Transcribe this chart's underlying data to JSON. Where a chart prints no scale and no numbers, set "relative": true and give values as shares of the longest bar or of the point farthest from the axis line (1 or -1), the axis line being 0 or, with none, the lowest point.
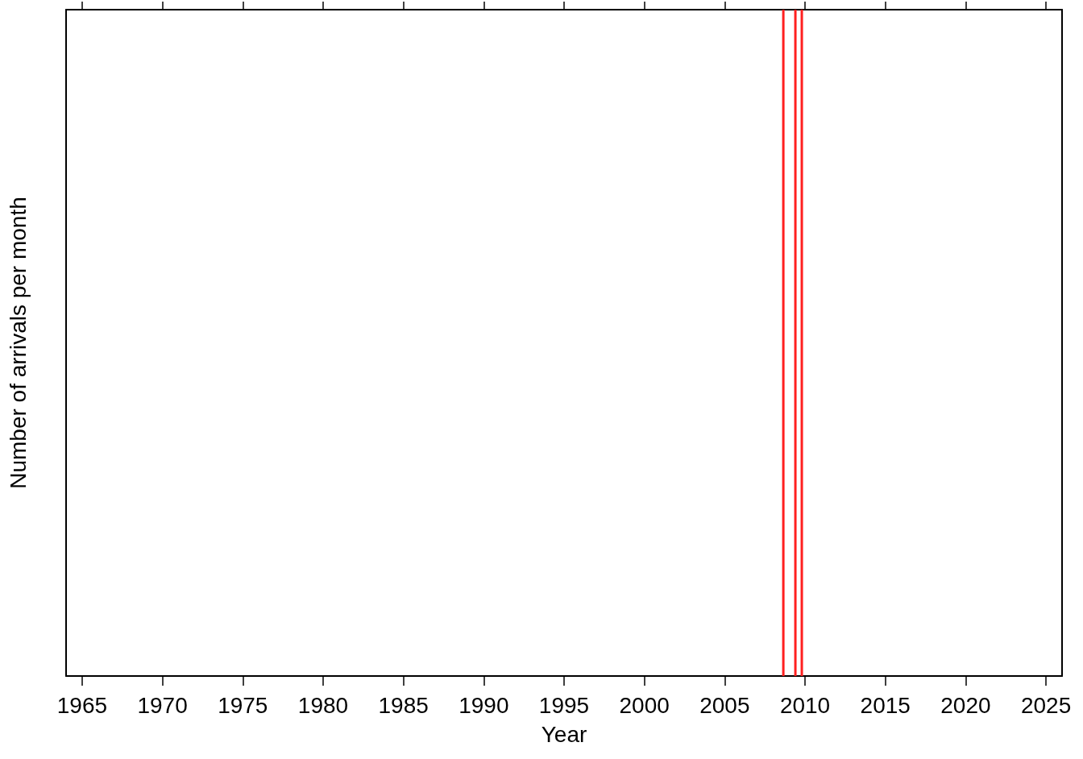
{
  "chart_data": {
    "type": "bar",
    "xlabel": "Year",
    "ylabel": "Number of arrivals per month",
    "relative": true,
    "x": [
      2008.65,
      2009.4,
      2009.8
    ],
    "values": [
      1,
      1,
      1
    ],
    "color": "#ff2020",
    "xlim": [
      1964,
      2026
    ],
    "xticks": [
      1965,
      1970,
      1975,
      1980,
      1985,
      1990,
      1995,
      2000,
      2005,
      2010,
      2015,
      2020,
      2025
    ],
    "grid": false
  }
}
